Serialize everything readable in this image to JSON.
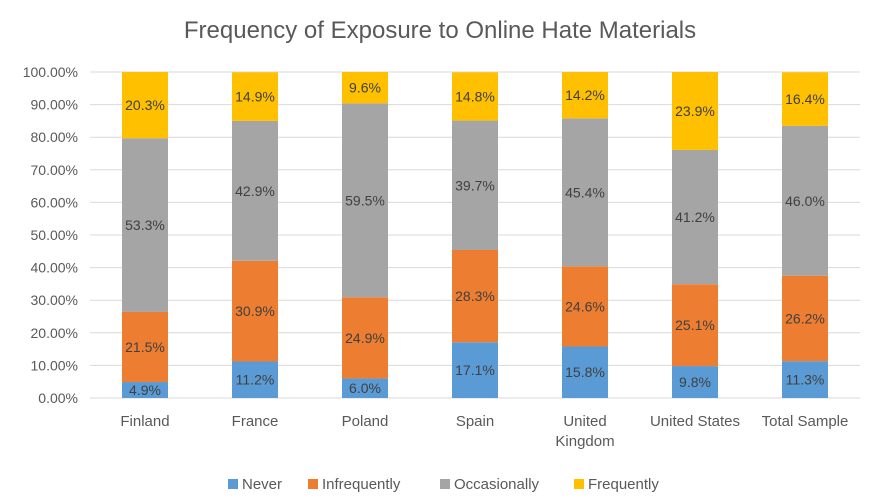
{
  "chart_data": {
    "type": "bar",
    "stacked": true,
    "title": "Frequency of Exposure to Online Hate Materials",
    "xlabel": "",
    "ylabel": "",
    "ylim": [
      0,
      100
    ],
    "y_ticks": [
      "0.00%",
      "10.00%",
      "20.00%",
      "30.00%",
      "40.00%",
      "50.00%",
      "60.00%",
      "70.00%",
      "80.00%",
      "90.00%",
      "100.00%"
    ],
    "grid": true,
    "legend_position": "bottom",
    "categories": [
      [
        "Finland"
      ],
      [
        "France"
      ],
      [
        "Poland"
      ],
      [
        "Spain"
      ],
      [
        "United",
        "Kingdom"
      ],
      [
        "United States"
      ],
      [
        "Total Sample"
      ]
    ],
    "series": [
      {
        "name": "Never",
        "color": "#5b9bd5",
        "values": [
          4.9,
          11.2,
          6.0,
          17.1,
          15.8,
          9.8,
          11.3
        ],
        "labels": [
          "4.9%",
          "11.2%",
          "6.0%",
          "17.1%",
          "15.8%",
          "9.8%",
          "11.3%"
        ]
      },
      {
        "name": "Infrequently",
        "color": "#ed7d31",
        "values": [
          21.5,
          30.9,
          24.9,
          28.3,
          24.6,
          25.1,
          26.2
        ],
        "labels": [
          "21.5%",
          "30.9%",
          "24.9%",
          "28.3%",
          "24.6%",
          "25.1%",
          "26.2%"
        ]
      },
      {
        "name": "Occasionally",
        "color": "#a5a5a5",
        "values": [
          53.3,
          42.9,
          59.5,
          39.7,
          45.4,
          41.2,
          46.0
        ],
        "labels": [
          "53.3%",
          "42.9%",
          "59.5%",
          "39.7%",
          "45.4%",
          "41.2%",
          "46.0%"
        ]
      },
      {
        "name": "Frequently",
        "color": "#ffc000",
        "values": [
          20.3,
          14.9,
          9.6,
          14.8,
          14.2,
          23.9,
          16.4
        ],
        "labels": [
          "20.3%",
          "14.9%",
          "9.6%",
          "14.8%",
          "14.2%",
          "23.9%",
          "16.4%"
        ]
      }
    ]
  }
}
